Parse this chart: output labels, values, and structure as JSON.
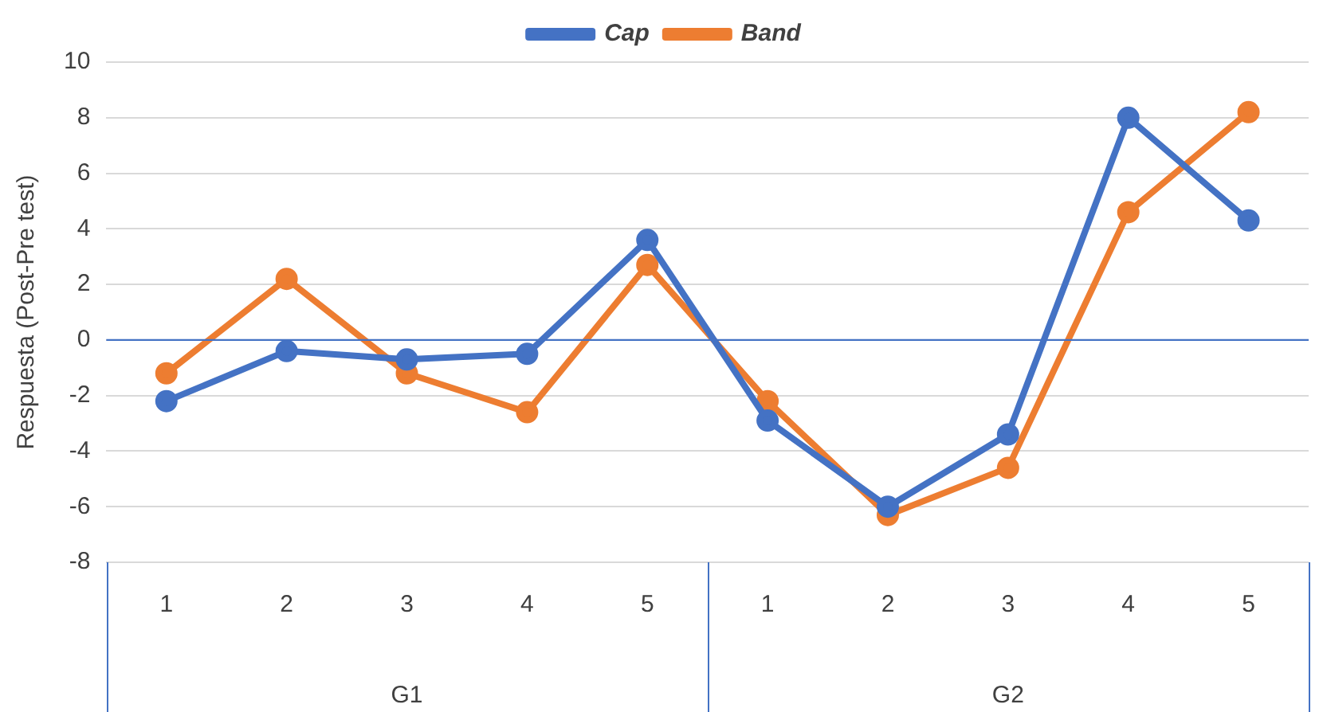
{
  "chart_data": {
    "type": "line",
    "ylabel": "Respuesta (Post-Pre test)",
    "categories": [
      "1",
      "2",
      "3",
      "4",
      "5",
      "1",
      "2",
      "3",
      "4",
      "5"
    ],
    "series": [
      {
        "name": "Cap",
        "color": "#4472c4",
        "values": [
          -2.2,
          -0.4,
          -0.7,
          -0.5,
          3.6,
          -2.9,
          -6.0,
          -3.4,
          8.0,
          4.3
        ]
      },
      {
        "name": "Band",
        "color": "#ed7d31",
        "values": [
          -1.2,
          2.2,
          -1.2,
          -2.6,
          2.7,
          -2.2,
          -6.3,
          -4.6,
          4.6,
          8.2
        ]
      }
    ],
    "ylim": [
      -8,
      10
    ],
    "yticks": [
      -8,
      -6,
      -4,
      -2,
      0,
      2,
      4,
      6,
      8,
      10
    ],
    "annotations": [
      "G1",
      "G2"
    ],
    "ref_lines": [
      {
        "axis": "y",
        "value": 0,
        "color": "#4472c4"
      }
    ],
    "grid": "y",
    "legend": "top",
    "marker": "circle",
    "line_style": "solid"
  }
}
